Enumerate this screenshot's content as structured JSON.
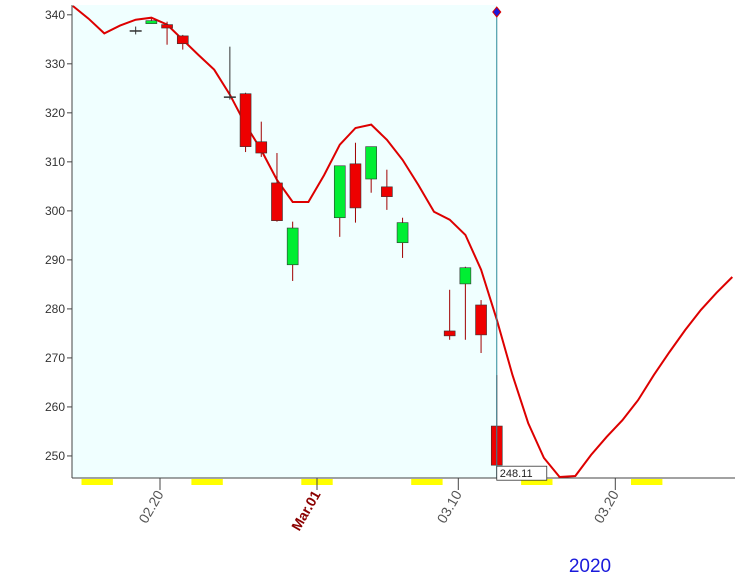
{
  "chart_data": {
    "type": "candlestick",
    "x": [
      "2020-02-18",
      "2020-02-19",
      "2020-02-20",
      "2020-02-21",
      "2020-02-24",
      "2020-02-25",
      "2020-02-26",
      "2020-02-27",
      "2020-02-28",
      "2020-03-02",
      "2020-03-03",
      "2020-03-04",
      "2020-03-05",
      "2020-03-06",
      "2020-03-09",
      "2020-03-10",
      "2020-03-11",
      "2020-03-12"
    ],
    "open": [
      336.7,
      338.2,
      338.0,
      335.7,
      323.2,
      323.9,
      314.1,
      305.7,
      289.0,
      298.6,
      309.6,
      306.5,
      304.9,
      293.5,
      275.5,
      285.1,
      280.8,
      256.1
    ],
    "high": [
      337.6,
      339.2,
      338.6,
      335.9,
      333.5,
      324.1,
      318.2,
      311.8,
      297.8,
      309.2,
      313.9,
      313.1,
      308.4,
      298.6,
      283.9,
      288.6,
      281.8,
      266.5
    ],
    "low": [
      336.0,
      338.2,
      333.9,
      332.9,
      322.7,
      312.0,
      311.0,
      297.8,
      285.7,
      294.7,
      297.6,
      303.7,
      300.2,
      290.4,
      273.7,
      273.7,
      271.0,
      248.11
    ],
    "close": [
      336.7,
      338.8,
      337.3,
      334.1,
      323.2,
      313.1,
      311.8,
      298.0,
      296.5,
      309.2,
      300.6,
      313.1,
      302.9,
      297.6,
      274.5,
      288.4,
      274.7,
      248.11
    ],
    "up_color": "#00ee33",
    "down_color": "#ee0000",
    "doji_color": "#333333",
    "line": {
      "color": "#dd0000",
      "x": [
        "2020-02-14",
        "2020-02-15",
        "2020-02-16",
        "2020-02-17",
        "2020-02-18",
        "2020-02-19",
        "2020-02-20",
        "2020-02-21",
        "2020-02-22",
        "2020-02-23",
        "2020-02-24",
        "2020-02-25",
        "2020-02-26",
        "2020-02-27",
        "2020-02-28",
        "2020-02-29",
        "2020-03-01",
        "2020-03-02",
        "2020-03-03",
        "2020-03-04",
        "2020-03-05",
        "2020-03-06",
        "2020-03-07",
        "2020-03-08",
        "2020-03-09",
        "2020-03-10",
        "2020-03-11",
        "2020-03-12",
        "2020-03-13",
        "2020-03-14",
        "2020-03-15",
        "2020-03-16",
        "2020-03-17",
        "2020-03-18",
        "2020-03-19",
        "2020-03-20",
        "2020-03-21",
        "2020-03-22",
        "2020-03-23",
        "2020-03-24",
        "2020-03-25",
        "2020-03-26",
        "2020-03-27"
      ],
      "values": [
        341.8,
        339.2,
        336.2,
        337.8,
        339.0,
        339.4,
        338.0,
        334.9,
        331.8,
        328.8,
        323.7,
        317.6,
        312.4,
        306.3,
        301.8,
        301.8,
        307.3,
        313.5,
        316.9,
        317.6,
        314.5,
        310.4,
        305.3,
        299.8,
        298.2,
        295.1,
        288.0,
        277.8,
        266.5,
        256.7,
        249.6,
        245.7,
        245.9,
        250.2,
        253.9,
        257.3,
        261.4,
        266.5,
        271.2,
        275.7,
        279.8,
        283.3,
        286.5
      ]
    },
    "annotation": {
      "x": "2020-03-12",
      "value": 248.11
    },
    "ylim": [
      245.5,
      342
    ],
    "yticks": [
      250,
      260,
      270,
      280,
      290,
      300,
      310,
      320,
      330,
      340
    ],
    "xlim": [
      "2020-02-14",
      "2020-03-28"
    ],
    "xticks": [
      {
        "value": "2020-02-20",
        "label": "02.20",
        "color": "#555555"
      },
      {
        "value": "2020-03-01",
        "label": "Mar.01",
        "color": "#8b0000"
      },
      {
        "value": "2020-03-10",
        "label": "03.10",
        "color": "#555555"
      },
      {
        "value": "2020-03-20",
        "label": "03.20",
        "color": "#555555"
      }
    ],
    "x_label": "2020"
  }
}
